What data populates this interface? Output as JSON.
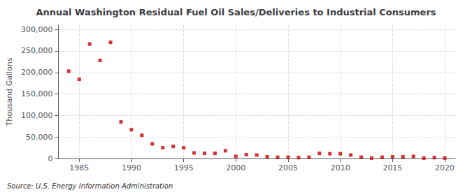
{
  "chart_data": {
    "type": "scatter",
    "title": "Annual Washington Residual Fuel Oil Sales/Deliveries to Industrial Consumers",
    "ylabel": "Thousand Gallons",
    "source": "Source: U.S. Energy Information Administration",
    "x": [
      1984,
      1985,
      1986,
      1987,
      1988,
      1989,
      1990,
      1991,
      1992,
      1993,
      1994,
      1995,
      1996,
      1997,
      1998,
      1999,
      2000,
      2001,
      2002,
      2003,
      2004,
      2005,
      2006,
      2007,
      2008,
      2009,
      2010,
      2011,
      2012,
      2013,
      2014,
      2015,
      2016,
      2017,
      2018,
      2019,
      2020
    ],
    "values": [
      203000,
      184000,
      266000,
      228000,
      270000,
      85000,
      67000,
      54000,
      34000,
      25000,
      28000,
      25000,
      13000,
      12000,
      12000,
      18000,
      5000,
      9000,
      8000,
      4000,
      3000,
      3000,
      2000,
      3000,
      12000,
      11000,
      11000,
      8000,
      3000,
      1000,
      3000,
      4000,
      4000,
      5000,
      1000,
      2000,
      1000
    ],
    "color": "#cc0000",
    "marker": "square",
    "xlim": [
      1983,
      2021
    ],
    "xticks": [
      1985,
      1990,
      1995,
      2000,
      2005,
      2010,
      2015,
      2020
    ],
    "ylim": [
      0,
      310000
    ],
    "yticks": [
      0,
      {
        "value": 50000,
        "label": "50,000"
      },
      {
        "value": 100000,
        "label": "100,000"
      },
      {
        "value": 150000,
        "label": "150,000"
      },
      {
        "value": 200000,
        "label": "200,000"
      },
      {
        "value": 250000,
        "label": "250,000"
      },
      {
        "value": 300000,
        "label": "300,000"
      }
    ],
    "grid": true
  }
}
